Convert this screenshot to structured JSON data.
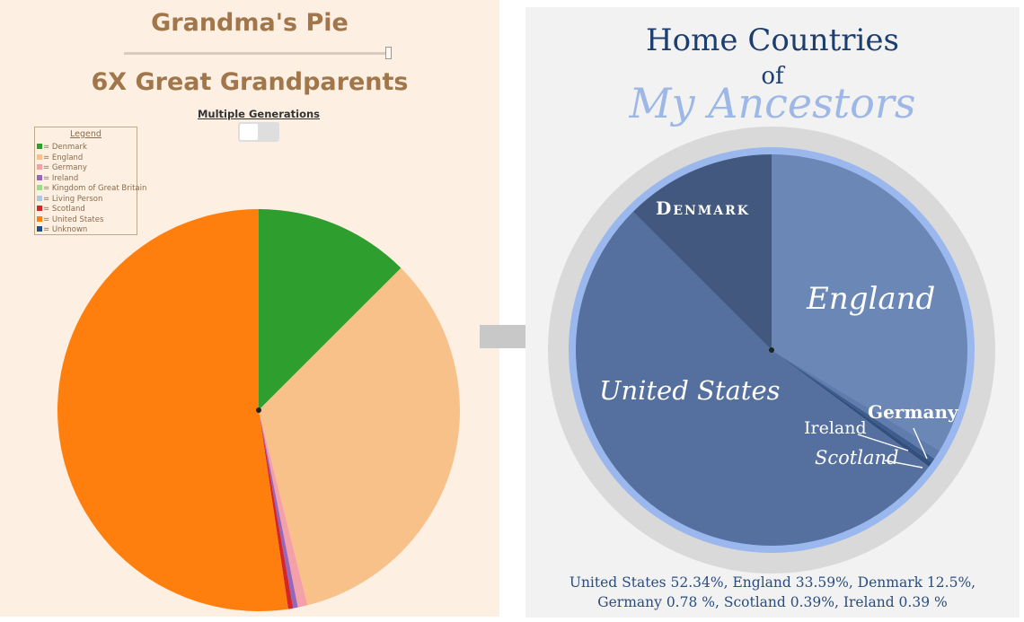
{
  "left_panel": {
    "app_title": "Grandma's Pie",
    "slider_value": 1.0,
    "generation_title": "6X Great Grandparents",
    "multi_gen_label": "Multiple Generations",
    "multi_gen_toggle": false,
    "legend_title": "Legend",
    "legend": [
      {
        "label": "= Denmark",
        "color": "#2e9e2e"
      },
      {
        "label": "= England",
        "color": "#f9c18a"
      },
      {
        "label": "= Germany",
        "color": "#f4a0a8"
      },
      {
        "label": "= Ireland",
        "color": "#9467bd"
      },
      {
        "label": "= Kingdom of Great Britain",
        "color": "#98df8a"
      },
      {
        "label": "= Living Person",
        "color": "#aec7e8"
      },
      {
        "label": "= Scotland",
        "color": "#d62728"
      },
      {
        "label": "= United States",
        "color": "#ff7f0e"
      },
      {
        "label": "= Unknown",
        "color": "#1f4e8c"
      }
    ]
  },
  "right_panel": {
    "title_line1": "Home Countries",
    "title_line2": "of",
    "title_line3": "My Ancestors",
    "labels": {
      "denmark": "Denmark",
      "england": "England",
      "united_states": "United States",
      "germany": "Germany",
      "ireland": "Ireland",
      "scotland": "Scotland"
    },
    "percent_line1": "United States 52.34%,  England 33.59%,  Denmark 12.5%,",
    "percent_line2": "Germany 0.78 %,  Scotland 0.39%,  Ireland 0.39 %"
  },
  "chart_data": [
    {
      "type": "pie",
      "title": "6X Great Grandparents",
      "categories": [
        "Denmark",
        "England",
        "Germany",
        "Ireland",
        "Scotland",
        "United States"
      ],
      "values": [
        12.5,
        33.59,
        0.78,
        0.39,
        0.39,
        52.34
      ],
      "colors": [
        "#2e9e2e",
        "#f9c18a",
        "#f4a0a8",
        "#9467bd",
        "#d62728",
        "#ff7f0e"
      ],
      "start": "12 o'clock",
      "direction": "clockwise"
    },
    {
      "type": "pie",
      "title": "Home Countries of My Ancestors",
      "categories": [
        "England",
        "Germany",
        "Scotland",
        "Ireland",
        "United States",
        "Denmark"
      ],
      "values": [
        33.59,
        0.78,
        0.39,
        0.39,
        52.34,
        12.5
      ],
      "colors": [
        "#6b87b6",
        "#5f7cac",
        "#3e5d8c",
        "#33507c",
        "#55709f",
        "#42587e"
      ],
      "start": "12 o'clock",
      "direction": "clockwise"
    }
  ]
}
